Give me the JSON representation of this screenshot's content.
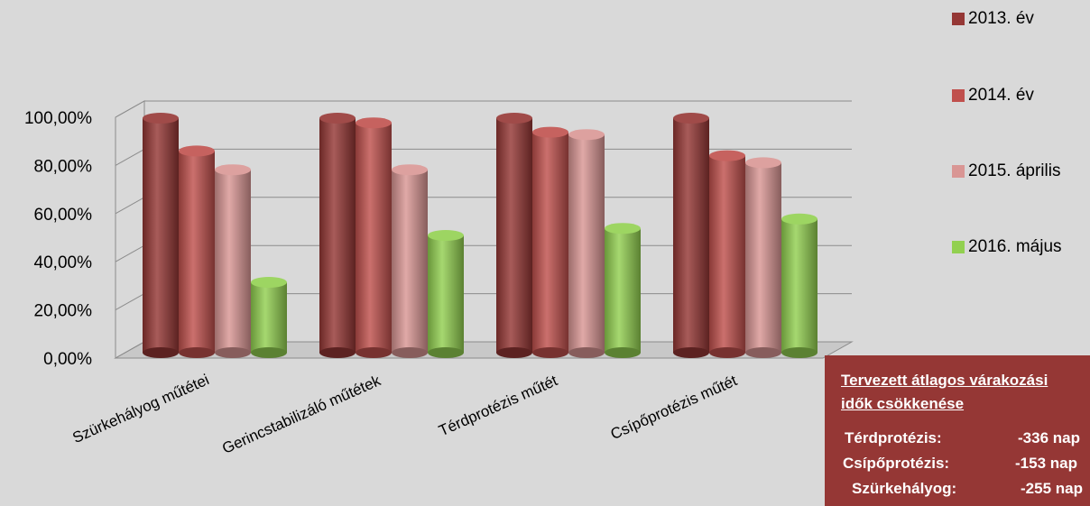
{
  "chart_data": {
    "type": "bar",
    "categories": [
      "Szürkehályog műtétei",
      "Gerincstabilizáló műtétek",
      "Térdprotézis műtét",
      "Csípőprotézis műtét"
    ],
    "series": [
      {
        "name": "2013. év",
        "color": "#953735",
        "values": [
          100,
          100,
          100,
          100
        ]
      },
      {
        "name": "2014. év",
        "color": "#c0504d",
        "values": [
          86,
          98,
          94,
          84
        ]
      },
      {
        "name": "2015. április",
        "color": "#d99694",
        "values": [
          78,
          78,
          93,
          81
        ]
      },
      {
        "name": "2016. május",
        "color": "#92d050",
        "values": [
          30,
          50,
          53,
          57
        ]
      }
    ],
    "y_ticks": [
      "0,00%",
      "20,00%",
      "40,00%",
      "60,00%",
      "80,00%",
      "100,00%"
    ],
    "ylim": [
      0,
      100
    ],
    "grid": true,
    "legend_position": "right",
    "style": "3d-cylinder"
  },
  "info_box": {
    "title_line1": "Tervezett átlagos várakozási",
    "title_line2": "idők csökkenése",
    "rows": [
      {
        "label": "Térdprotézis:",
        "value": "-336 nap"
      },
      {
        "label": "Csípőprotézis:",
        "value": "-153 nap"
      },
      {
        "label": "Szürkehályog:",
        "value": "-255 nap"
      }
    ]
  }
}
